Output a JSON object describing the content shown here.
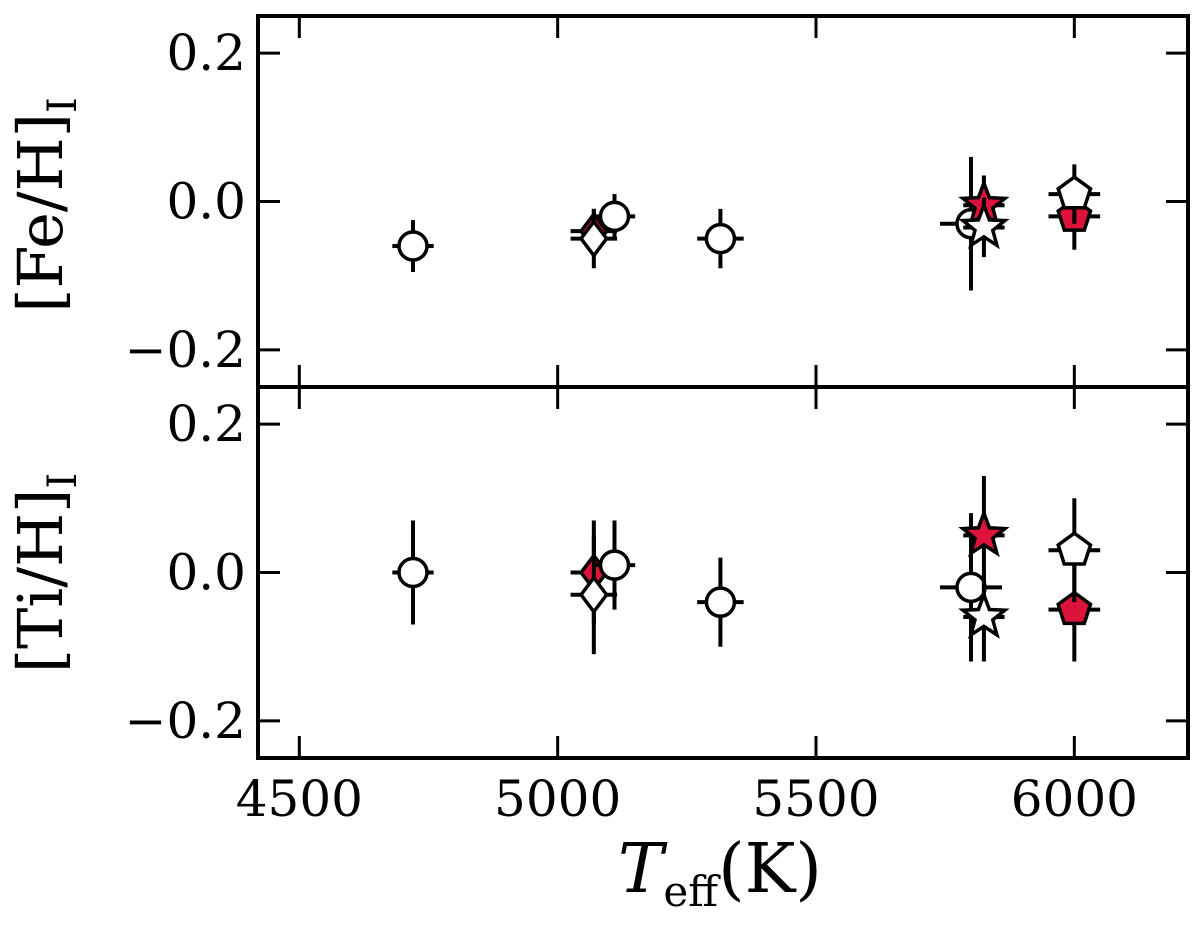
{
  "chart_data": [
    {
      "type": "scatter",
      "ylabel": "[Fe/H]",
      "ylabel_sub": "I",
      "xlim": [
        4420,
        6220
      ],
      "ylim": [
        -0.25,
        0.25
      ],
      "yticks": [
        -0.2,
        0.0,
        0.2
      ],
      "ytick_labels": [
        "−0.2",
        "0.0",
        "0.2"
      ],
      "xticks": [
        4500,
        5000,
        5500,
        6000
      ],
      "points": [
        {
          "x": 4720,
          "y": -0.06,
          "xerr": 40,
          "yerr": 0.035,
          "marker": "circle",
          "fill": "#ffffff"
        },
        {
          "x": 5070,
          "y": -0.04,
          "xerr": 45,
          "yerr": 0.03,
          "marker": "diamond",
          "fill": "#dc143c"
        },
        {
          "x": 5070,
          "y": -0.05,
          "xerr": 45,
          "yerr": 0.04,
          "marker": "diamond",
          "fill": "#ffffff"
        },
        {
          "x": 5110,
          "y": -0.02,
          "xerr": 40,
          "yerr": 0.03,
          "marker": "circle",
          "fill": "#ffffff"
        },
        {
          "x": 5315,
          "y": -0.05,
          "xerr": 45,
          "yerr": 0.04,
          "marker": "circle",
          "fill": "#ffffff"
        },
        {
          "x": 5800,
          "y": -0.03,
          "xerr": 60,
          "yerr": 0.09,
          "marker": "circle",
          "fill": "#ffffff"
        },
        {
          "x": 5825,
          "y": -0.005,
          "xerr": 40,
          "yerr": 0.04,
          "marker": "star",
          "fill": "#dc143c"
        },
        {
          "x": 5825,
          "y": -0.035,
          "xerr": 40,
          "yerr": 0.04,
          "marker": "star",
          "fill": "#ffffff"
        },
        {
          "x": 6000,
          "y": -0.02,
          "xerr": 50,
          "yerr": 0.045,
          "marker": "pentagon",
          "fill": "#dc143c"
        },
        {
          "x": 6000,
          "y": 0.01,
          "xerr": 50,
          "yerr": 0.04,
          "marker": "pentagon",
          "fill": "#ffffff"
        }
      ]
    },
    {
      "type": "scatter",
      "ylabel": "[Ti/H]",
      "ylabel_sub": "I",
      "xlabel": "T",
      "xlabel_sub": "eff",
      "xlabel_unit": "(K)",
      "xlim": [
        4420,
        6220
      ],
      "ylim": [
        -0.25,
        0.25
      ],
      "yticks": [
        -0.2,
        0.0,
        0.2
      ],
      "ytick_labels": [
        "−0.2",
        "0.0",
        "0.2"
      ],
      "xticks": [
        4500,
        5000,
        5500,
        6000
      ],
      "xtick_labels": [
        "4500",
        "5000",
        "5500",
        "6000"
      ],
      "points": [
        {
          "x": 4720,
          "y": 0.0,
          "xerr": 40,
          "yerr": 0.07,
          "marker": "circle",
          "fill": "#ffffff"
        },
        {
          "x": 5070,
          "y": 0.0,
          "xerr": 45,
          "yerr": 0.07,
          "marker": "diamond",
          "fill": "#dc143c"
        },
        {
          "x": 5070,
          "y": -0.03,
          "xerr": 45,
          "yerr": 0.08,
          "marker": "diamond",
          "fill": "#ffffff"
        },
        {
          "x": 5110,
          "y": 0.01,
          "xerr": 40,
          "yerr": 0.06,
          "marker": "circle",
          "fill": "#ffffff"
        },
        {
          "x": 5315,
          "y": -0.04,
          "xerr": 45,
          "yerr": 0.06,
          "marker": "circle",
          "fill": "#ffffff"
        },
        {
          "x": 5800,
          "y": -0.02,
          "xerr": 60,
          "yerr": 0.1,
          "marker": "circle",
          "fill": "#ffffff"
        },
        {
          "x": 5825,
          "y": 0.05,
          "xerr": 40,
          "yerr": 0.08,
          "marker": "star",
          "fill": "#dc143c"
        },
        {
          "x": 5825,
          "y": -0.06,
          "xerr": 40,
          "yerr": 0.06,
          "marker": "star",
          "fill": "#ffffff"
        },
        {
          "x": 6000,
          "y": -0.05,
          "xerr": 50,
          "yerr": 0.07,
          "marker": "pentagon",
          "fill": "#dc143c"
        },
        {
          "x": 6000,
          "y": 0.03,
          "xerr": 50,
          "yerr": 0.07,
          "marker": "pentagon",
          "fill": "#ffffff"
        }
      ]
    }
  ],
  "colors": {
    "filled_marker": "#dc143c",
    "open_marker": "#ffffff",
    "stroke": "#000000"
  }
}
